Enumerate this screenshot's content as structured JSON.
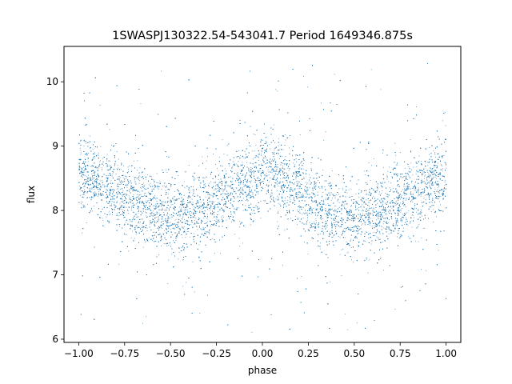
{
  "chart_data": {
    "type": "scatter",
    "title": "1SWASPJ130322.54-543041.7 Period 1649346.875s",
    "xlabel": "phase",
    "ylabel": "flux",
    "xlim": [
      -1.08,
      1.08
    ],
    "ylim": [
      5.95,
      10.55
    ],
    "xticks": [
      -1.0,
      -0.75,
      -0.5,
      -0.25,
      0.0,
      0.25,
      0.5,
      0.75,
      1.0
    ],
    "xtick_labels": [
      "−1.00",
      "−0.75",
      "−0.50",
      "−0.25",
      "0.00",
      "0.25",
      "0.50",
      "0.75",
      "1.00"
    ],
    "yticks": [
      6,
      7,
      8,
      9,
      10
    ],
    "ytick_labels": [
      "6",
      "7",
      "8",
      "9",
      "10"
    ],
    "grid": false,
    "legend": "none",
    "marker_color": "#1f77b4",
    "series": [
      {
        "phase_profile": {
          "x": [
            -1.0,
            -0.9,
            -0.8,
            -0.7,
            -0.6,
            -0.5,
            -0.4,
            -0.3,
            -0.2,
            -0.1,
            0.0,
            0.1,
            0.2,
            0.3,
            0.4,
            0.5,
            0.6,
            0.7,
            0.8,
            0.9,
            1.0
          ],
          "y": [
            8.55,
            8.5,
            8.3,
            8.15,
            8.0,
            7.9,
            7.95,
            8.05,
            8.25,
            8.45,
            8.55,
            8.5,
            8.3,
            8.1,
            7.95,
            7.85,
            7.95,
            8.05,
            8.25,
            8.4,
            8.55
          ]
        },
        "scatter_sigma": 0.28,
        "n_points": 14000,
        "outlier_range": [
          6.1,
          10.3
        ]
      }
    ]
  }
}
